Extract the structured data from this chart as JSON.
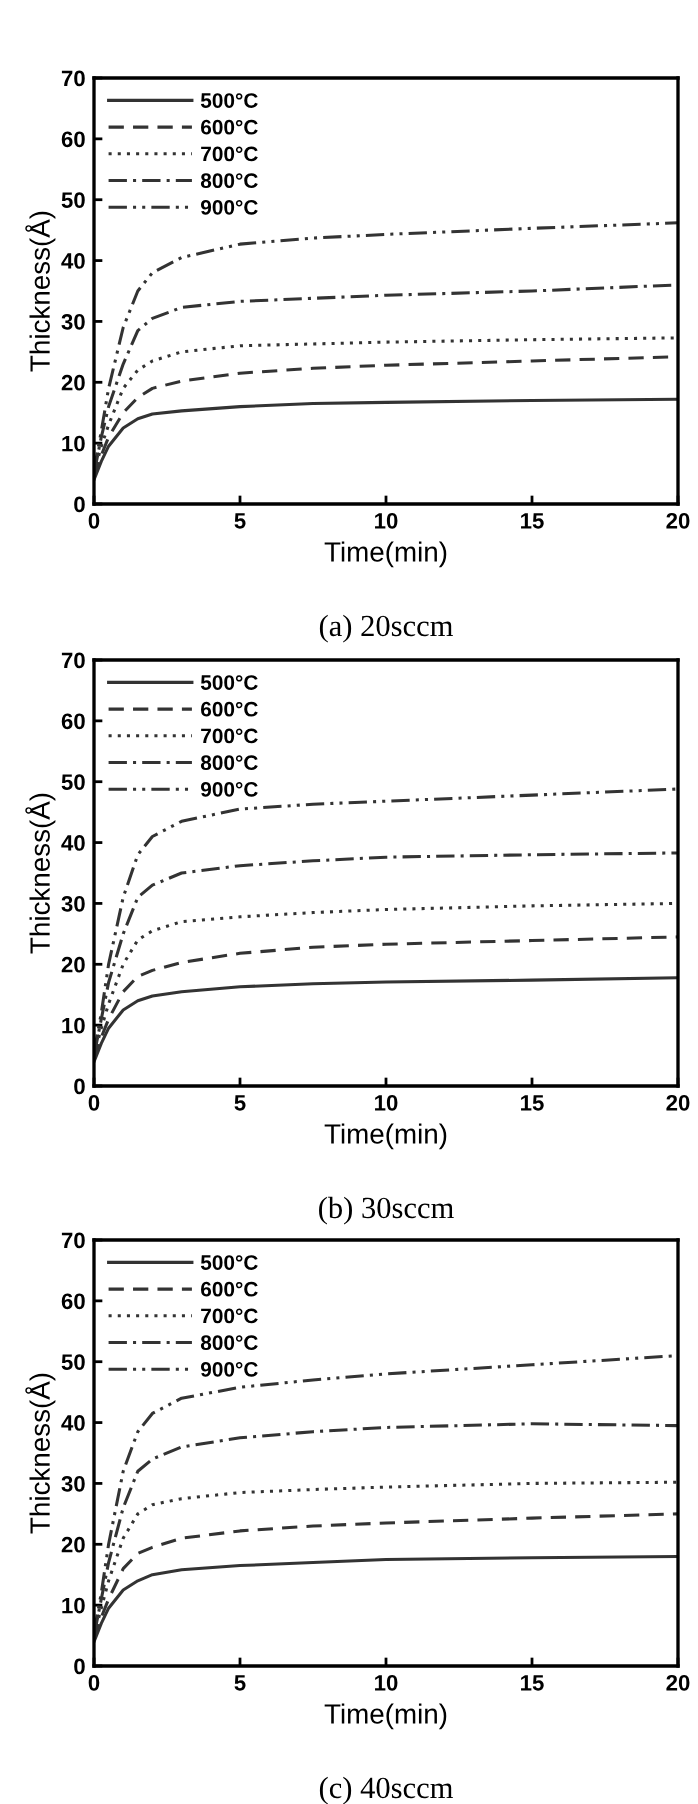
{
  "chart_data": [
    {
      "type": "line",
      "xlabel": "Time(min)",
      "ylabel": "Thickness(Å)",
      "annotations": [
        "(a) 20sccm"
      ],
      "xlim": [
        0,
        20
      ],
      "ylim": [
        0,
        70
      ],
      "xticks": [
        0,
        5,
        10,
        15,
        20
      ],
      "yticks": [
        0,
        10,
        20,
        30,
        40,
        50,
        60,
        70
      ],
      "legend": "top left",
      "grid": false,
      "marker": "none",
      "x": [
        0,
        0.25,
        0.5,
        1,
        1.5,
        2,
        3,
        5,
        7.5,
        10,
        15,
        20
      ],
      "series": [
        {
          "name": "500°C",
          "color": "#333333",
          "line_style": "solid",
          "values": [
            4,
            7,
            9.5,
            12.5,
            14,
            14.8,
            15.3,
            16,
            16.5,
            16.7,
            17,
            17.2
          ]
        },
        {
          "name": "600°C",
          "color": "#333333",
          "line_style": "dashed",
          "values": [
            4.5,
            8,
            11,
            15,
            17.5,
            19,
            20.2,
            21.5,
            22.3,
            22.8,
            23.5,
            24.2
          ]
        },
        {
          "name": "700°C",
          "color": "#333333",
          "line_style": "dotted",
          "values": [
            5,
            9.5,
            13,
            19,
            22,
            23.5,
            25,
            26,
            26.3,
            26.6,
            27,
            27.3
          ]
        },
        {
          "name": "800°C",
          "color": "#333333",
          "line_style": "dashdot",
          "values": [
            5,
            11,
            16,
            23,
            28.5,
            30.5,
            32.3,
            33.3,
            33.8,
            34.3,
            35,
            36
          ]
        },
        {
          "name": "900°C",
          "color": "#333333",
          "line_style": "dashdotdot",
          "values": [
            5.5,
            12,
            19,
            29,
            35,
            38,
            40.5,
            42.7,
            43.7,
            44.3,
            45.3,
            46.2
          ]
        }
      ]
    },
    {
      "type": "line",
      "xlabel": "Time(min)",
      "ylabel": "Thickness(Å)",
      "annotations": [
        "(b) 30sccm"
      ],
      "xlim": [
        0,
        20
      ],
      "ylim": [
        0,
        70
      ],
      "xticks": [
        0,
        5,
        10,
        15,
        20
      ],
      "yticks": [
        0,
        10,
        20,
        30,
        40,
        50,
        60,
        70
      ],
      "legend": "top left",
      "grid": false,
      "marker": "none",
      "x": [
        0,
        0.25,
        0.5,
        1,
        1.5,
        2,
        3,
        5,
        7.5,
        10,
        15,
        20
      ],
      "series": [
        {
          "name": "500°C",
          "color": "#333333",
          "line_style": "solid",
          "values": [
            4,
            7,
            9.5,
            12.5,
            14,
            14.8,
            15.5,
            16.3,
            16.8,
            17.1,
            17.4,
            17.8
          ]
        },
        {
          "name": "600°C",
          "color": "#333333",
          "line_style": "dashed",
          "values": [
            4.5,
            8,
            11,
            15.5,
            18,
            19,
            20.3,
            21.8,
            22.8,
            23.3,
            23.9,
            24.5
          ]
        },
        {
          "name": "700°C",
          "color": "#333333",
          "line_style": "dotted",
          "values": [
            5,
            9.5,
            13.5,
            20,
            24,
            25.5,
            27,
            27.8,
            28.5,
            29,
            29.6,
            30
          ]
        },
        {
          "name": "800°C",
          "color": "#333333",
          "line_style": "dashdot",
          "values": [
            5,
            11,
            17,
            25,
            31,
            33,
            35,
            36.2,
            37,
            37.6,
            38,
            38.3
          ]
        },
        {
          "name": "900°C",
          "color": "#333333",
          "line_style": "dashdotdot",
          "values": [
            5.5,
            12,
            20,
            31,
            38,
            41,
            43.5,
            45.5,
            46.3,
            46.8,
            47.8,
            48.8
          ]
        }
      ]
    },
    {
      "type": "line",
      "xlabel": "Time(min)",
      "ylabel": "Thickness(Å)",
      "annotations": [
        "(c) 40sccm"
      ],
      "xlim": [
        0,
        20
      ],
      "ylim": [
        0,
        70
      ],
      "xticks": [
        0,
        5,
        10,
        15,
        20
      ],
      "yticks": [
        0,
        10,
        20,
        30,
        40,
        50,
        60,
        70
      ],
      "legend": "top left",
      "grid": false,
      "marker": "none",
      "x": [
        0,
        0.25,
        0.5,
        1,
        1.5,
        2,
        3,
        5,
        7.5,
        10,
        15,
        20
      ],
      "series": [
        {
          "name": "500°C",
          "color": "#333333",
          "line_style": "solid",
          "values": [
            4,
            7,
            9.5,
            12.5,
            14,
            15,
            15.8,
            16.5,
            17,
            17.5,
            17.8,
            18
          ]
        },
        {
          "name": "600°C",
          "color": "#333333",
          "line_style": "dashed",
          "values": [
            4.5,
            8,
            11,
            16,
            18.5,
            19.5,
            21,
            22.2,
            23,
            23.5,
            24.3,
            25
          ]
        },
        {
          "name": "700°C",
          "color": "#333333",
          "line_style": "dotted",
          "values": [
            5,
            9.5,
            14,
            21,
            25,
            26.5,
            27.5,
            28.5,
            29,
            29.4,
            30,
            30.2
          ]
        },
        {
          "name": "800°C",
          "color": "#333333",
          "line_style": "dashdot",
          "values": [
            5,
            11,
            17,
            26,
            32,
            34,
            36,
            37.5,
            38.5,
            39.2,
            39.8,
            39.5
          ]
        },
        {
          "name": "900°C",
          "color": "#333333",
          "line_style": "dashdotdot",
          "values": [
            5.5,
            12,
            20,
            32,
            38.5,
            41.5,
            44,
            45.8,
            47,
            48,
            49.5,
            51
          ]
        }
      ]
    }
  ]
}
